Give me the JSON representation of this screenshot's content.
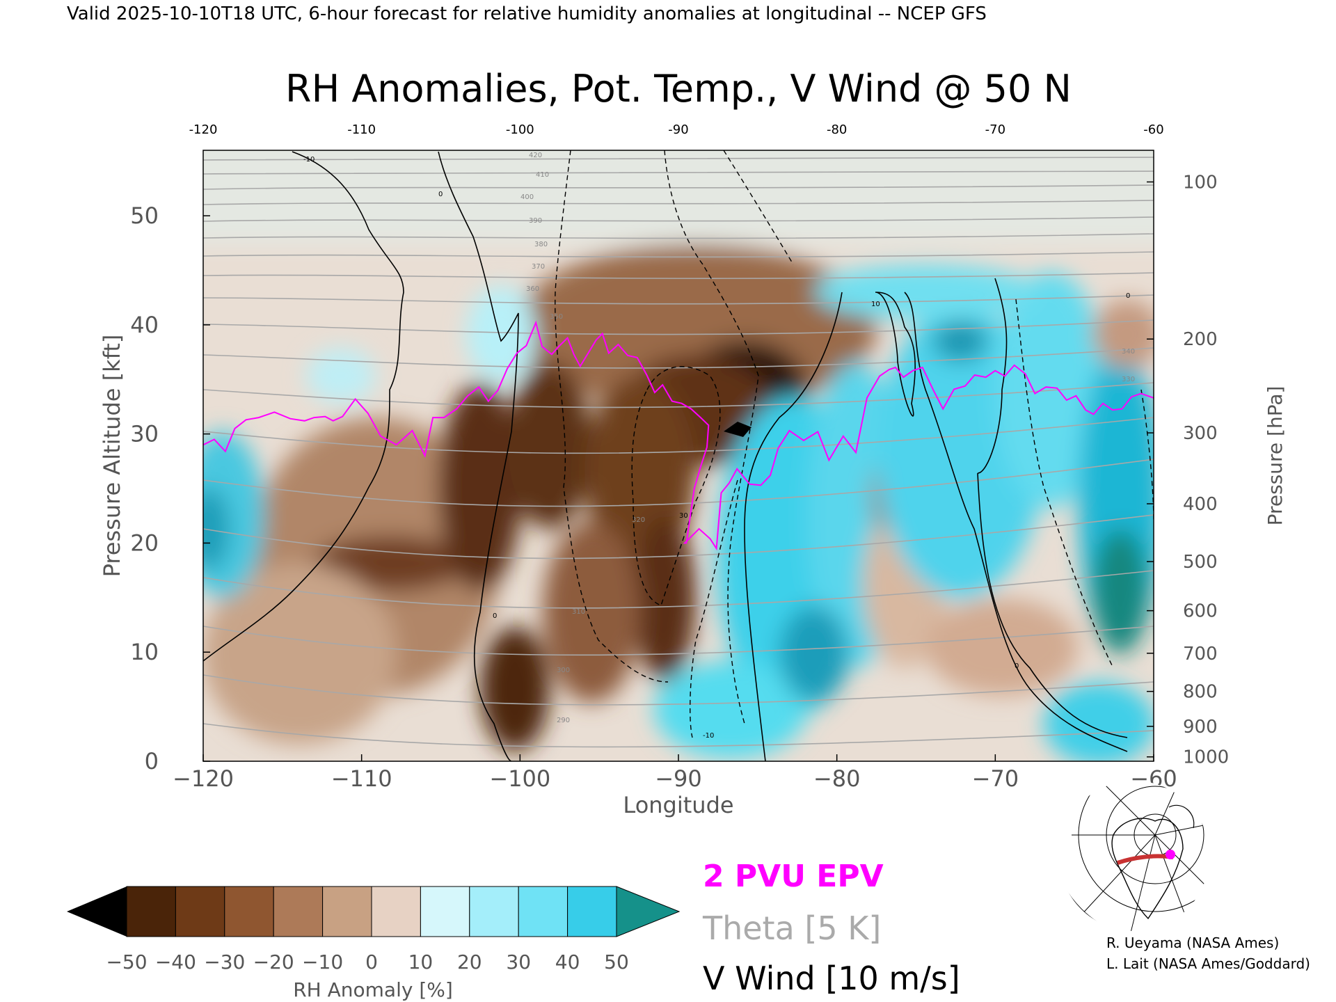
{
  "header": "Valid 2025-10-10T18 UTC, 6-hour forecast for relative humidity anomalies at longitudinal -- NCEP GFS",
  "chart_data": {
    "type": "heatmap",
    "title": "RH Anomalies, Pot. Temp., V Wind @ 50 N",
    "xlabel": "Longitude",
    "ylabel_left": "Pressure Altitude [kft]",
    "ylabel_right": "Pressure [hPa]",
    "xlim": [
      -120,
      -60
    ],
    "ylim": [
      0,
      56
    ],
    "x_ticks": [
      "−120",
      "−110",
      "−100",
      "−90",
      "−80",
      "−70",
      "−60"
    ],
    "x_tick_values": [
      -120,
      -110,
      -100,
      -90,
      -80,
      -70,
      -60
    ],
    "top_ticks": [
      "-120",
      "-110",
      "-100",
      "-90",
      "-80",
      "-70",
      "-60"
    ],
    "y_ticks_left": [
      "0",
      "10",
      "20",
      "30",
      "40",
      "50"
    ],
    "y_tick_values_left": [
      0,
      10,
      20,
      30,
      40,
      50
    ],
    "y_ticks_right": [
      {
        "label": "100",
        "kft": 53.1
      },
      {
        "label": "200",
        "kft": 38.7
      },
      {
        "label": "300",
        "kft": 30.1
      },
      {
        "label": "400",
        "kft": 23.6
      },
      {
        "label": "500",
        "kft": 18.3
      },
      {
        "label": "600",
        "kft": 13.8
      },
      {
        "label": "700",
        "kft": 9.9
      },
      {
        "label": "800",
        "kft": 6.4
      },
      {
        "label": "900",
        "kft": 3.2
      },
      {
        "label": "1000",
        "kft": 0.4
      }
    ],
    "colorbar": {
      "label": "RH Anomaly [%]",
      "ticks": [
        "−50",
        "−40",
        "−30",
        "−20",
        "−10",
        "0",
        "10",
        "20",
        "30",
        "40",
        "50"
      ],
      "tick_values": [
        -50,
        -40,
        -30,
        -20,
        -10,
        0,
        10,
        20,
        30,
        40,
        50
      ],
      "colors": [
        "#4a2409",
        "#6e3a17",
        "#8f5630",
        "#ad7a58",
        "#c8a183",
        "#e7d2c4",
        "#d6f7fb",
        "#a4eefa",
        "#6fe2f5",
        "#37cde9",
        "#1aa6c7"
      ],
      "under_color": "#000000",
      "over_color": "#15918a"
    },
    "legend": [
      {
        "label": "2 PVU EPV",
        "color": "#ff00ff"
      },
      {
        "label": "Theta [5 K]",
        "color": "#a0a0a0"
      },
      {
        "label": "V Wind [10 m/s]",
        "color": "#000000"
      }
    ],
    "epv_2pvu": {
      "x": [
        -120,
        -119.3,
        -118.6,
        -118,
        -117.3,
        -116.5,
        -115.5,
        -114.5,
        -113.6,
        -113,
        -112.3,
        -111.8,
        -111.2,
        -110.4,
        -109.6,
        -108.8,
        -107.8,
        -106.8,
        -106,
        -105.5,
        -104.8,
        -104,
        -103.3,
        -102.6,
        -102,
        -101.4,
        -100.8,
        -100.2,
        -99.6,
        -99,
        -98.6,
        -98,
        -97.5,
        -97,
        -96.6,
        -96.2,
        -95.7,
        -95.2,
        -94.8,
        -94.4,
        -93.8,
        -93.2,
        -92.6,
        -92,
        -91.5,
        -91,
        -90.4,
        -89.8,
        -89.2,
        -88.6,
        -88.1,
        -88.2,
        -88.6,
        -89,
        -89.3,
        -89.5,
        -89.6,
        -88.7,
        -88,
        -87.6,
        -87.3,
        -86.8,
        -86.3,
        -85.5,
        -84.8,
        -84.2,
        -83.7,
        -83,
        -82.1,
        -81.2,
        -80.5,
        -79.6,
        -78.8,
        -78.1,
        -77.3,
        -76.7,
        -76.3,
        -75.8,
        -75.2,
        -74.6,
        -73.9,
        -73.3,
        -72.6,
        -71.9,
        -71.3,
        -70.6,
        -70,
        -69.4,
        -68.8,
        -68.1,
        -67.5,
        -66.8,
        -66.1,
        -65.5,
        -64.9,
        -64.3,
        -63.8,
        -63.2,
        -62.6,
        -62,
        -61.4,
        -60.8,
        -60
      ],
      "y": [
        29,
        29.5,
        28.4,
        30.5,
        31.3,
        31.5,
        32,
        31.4,
        31.2,
        31.5,
        31.6,
        31.2,
        31.6,
        33.2,
        31.9,
        29.8,
        29,
        30.3,
        28,
        31.5,
        31.5,
        32.3,
        33.5,
        34.3,
        33,
        34,
        36,
        37.4,
        38.1,
        40.2,
        38,
        37.3,
        38.1,
        38.8,
        37.3,
        36.2,
        37.4,
        38.6,
        39.2,
        37.4,
        38.2,
        37.2,
        37,
        35.4,
        33.8,
        34.5,
        33,
        32.8,
        32.3,
        31.5,
        30.8,
        28.8,
        27,
        25,
        22,
        20,
        20,
        21.3,
        20.4,
        19.5,
        24.6,
        25.5,
        26.8,
        25.4,
        25.3,
        26.2,
        28.7,
        30.3,
        29.4,
        30.2,
        27.6,
        29.8,
        28.3,
        33.3,
        35.3,
        35.9,
        36.1,
        35.2,
        35.8,
        36.1,
        34,
        32.3,
        34.1,
        34.4,
        35.4,
        35.2,
        35.8,
        35.3,
        36.3,
        35.5,
        33.7,
        34.3,
        34.2,
        33.1,
        33.5,
        32.2,
        31.8,
        32.8,
        32.2,
        32.3,
        33.4,
        33.7,
        33.3
      ]
    },
    "theta_labels": [
      "420",
      "410",
      "400",
      "390",
      "380",
      "370",
      "360",
      "350",
      "340",
      "330",
      "320",
      "310",
      "300",
      "290"
    ],
    "v_wind_labels": [
      "0",
      "10",
      "-10",
      "30"
    ]
  },
  "map_inset": {
    "alt": "polar map inset"
  },
  "credits": [
    "R. Ueyama (NASA Ames)",
    "L. Lait (NASA Ames/Goddard)"
  ]
}
